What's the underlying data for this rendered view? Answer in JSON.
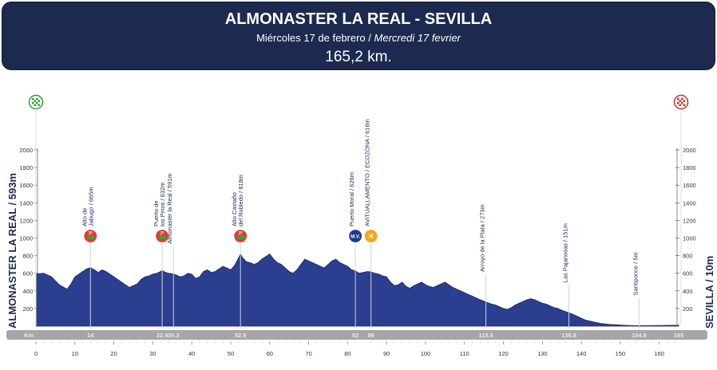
{
  "header": {
    "title": "ALMONASTER LA REAL - SEVILLA",
    "date_es": "Miércoles 17 de febrero /",
    "date_fr": "Mercredi 17 fevrier",
    "distance": "165,2 km."
  },
  "start_label": "ALMONASTER LA REAL / 593m",
  "finish_label": "SEVILLA / 10m",
  "colors": {
    "header_bg": "#1c2a4f",
    "profile_fill": "#2b3e8f",
    "profile_stroke": "#1a2766",
    "km_bar": "#a6a6a6",
    "km_text": "#e9ecef"
  },
  "chart_data": {
    "type": "area",
    "xlabel": "Km",
    "ylabel": "",
    "xlim": [
      0,
      166
    ],
    "ylim": [
      0,
      2200
    ],
    "yticks": [
      200,
      400,
      600,
      800,
      1000,
      1200,
      1400,
      1600,
      1800,
      2000
    ],
    "xticks": [
      0,
      10,
      20,
      30,
      40,
      50,
      60,
      70,
      80,
      90,
      100,
      110,
      120,
      130,
      140,
      150,
      160
    ],
    "km_marks": [
      "14",
      "32.4",
      "35.3",
      "52.5",
      "82",
      "86",
      "115.5",
      "136.8",
      "154.8",
      "165"
    ],
    "km_mark_values": [
      14,
      32.4,
      35.3,
      52.5,
      82,
      86,
      115.5,
      136.8,
      154.8,
      165
    ],
    "profile": {
      "x": [
        0,
        2,
        4,
        6,
        8,
        9,
        10,
        11,
        12,
        13,
        14,
        15,
        16,
        17,
        18,
        19,
        20,
        22,
        24,
        26,
        27,
        28,
        29,
        30,
        31,
        32,
        32.4,
        33,
        34,
        35.3,
        36,
        37,
        38,
        39,
        40,
        41,
        42,
        43,
        44,
        45,
        46,
        47,
        48,
        49,
        50,
        51,
        52.5,
        53,
        54,
        55,
        56,
        57,
        58,
        59,
        60,
        61,
        62,
        63,
        64,
        65,
        66,
        67,
        68,
        69,
        70,
        71,
        72,
        73,
        74,
        75,
        76,
        77,
        78,
        79,
        80,
        81,
        82,
        83,
        84,
        85,
        86,
        87,
        88,
        89,
        90,
        91,
        92,
        93,
        94,
        95,
        96,
        97,
        98,
        99,
        100,
        101,
        102,
        103,
        104,
        105,
        106,
        107,
        108,
        109,
        110,
        111,
        112,
        113,
        114,
        115.5,
        117,
        118,
        119,
        120,
        121,
        122,
        123,
        124,
        125,
        126,
        127,
        128,
        129,
        130,
        131,
        132,
        133,
        134,
        135,
        136.8,
        138,
        139,
        140,
        141,
        142,
        143,
        144,
        145,
        146,
        147,
        148,
        149,
        150,
        151,
        152,
        153,
        154.8,
        156,
        158,
        160,
        162,
        164,
        165
      ],
      "y": [
        593,
        600,
        560,
        470,
        420,
        480,
        560,
        590,
        620,
        650,
        665,
        640,
        610,
        640,
        620,
        590,
        560,
        500,
        440,
        480,
        530,
        560,
        570,
        590,
        600,
        620,
        632,
        615,
        600,
        591,
        580,
        560,
        570,
        600,
        590,
        540,
        560,
        620,
        640,
        610,
        620,
        650,
        680,
        660,
        640,
        690,
        818,
        780,
        730,
        720,
        700,
        720,
        760,
        790,
        820,
        760,
        720,
        700,
        660,
        620,
        600,
        640,
        700,
        760,
        740,
        720,
        700,
        680,
        660,
        700,
        740,
        760,
        720,
        700,
        680,
        640,
        626,
        600,
        610,
        620,
        616,
        600,
        590,
        570,
        560,
        500,
        460,
        470,
        500,
        450,
        430,
        460,
        480,
        500,
        470,
        450,
        440,
        460,
        480,
        500,
        470,
        440,
        420,
        400,
        380,
        360,
        340,
        320,
        300,
        273,
        250,
        240,
        220,
        200,
        190,
        210,
        240,
        260,
        280,
        300,
        310,
        300,
        280,
        260,
        250,
        230,
        210,
        200,
        180,
        151,
        130,
        110,
        90,
        70,
        60,
        50,
        40,
        30,
        25,
        20,
        18,
        15,
        12,
        10,
        8,
        6,
        5,
        5,
        6,
        8,
        9,
        10,
        10
      ]
    },
    "annotations": [
      {
        "km": 14,
        "label_lines": [
          "Alto de",
          "Jabugo / 665m"
        ],
        "icon": "cat3",
        "icon_text": "3ª"
      },
      {
        "km": 32.4,
        "label_lines": [
          "Puerto de",
          "los Pinos / 632m"
        ],
        "icon": "cat3",
        "icon_text": "3ª"
      },
      {
        "km": 35.3,
        "label_lines": [
          "Almonaster la Real / 591m"
        ],
        "icon": "none",
        "icon_text": ""
      },
      {
        "km": 52.5,
        "label_lines": [
          "Alto Castaño",
          "del Robledo / 818m"
        ],
        "icon": "cat3",
        "icon_text": "3ª"
      },
      {
        "km": 82,
        "label_lines": [
          "Puerto Moral / 626m"
        ],
        "icon": "sprint",
        "icon_text": "M.V."
      },
      {
        "km": 86,
        "label_lines": [
          "AVITUALLAMENTO / ECOZONA / 616m"
        ],
        "icon": "feed",
        "icon_text": "✕"
      },
      {
        "km": 115.5,
        "label_lines": [
          "Arroyo de la Plata / 273m"
        ],
        "icon": "none",
        "icon_text": ""
      },
      {
        "km": 136.8,
        "label_lines": [
          "Las Pajanosas / 151m"
        ],
        "icon": "none",
        "icon_text": ""
      },
      {
        "km": 154.8,
        "label_lines": [
          "Santiponce / 5m"
        ],
        "icon": "none",
        "icon_text": ""
      }
    ]
  }
}
